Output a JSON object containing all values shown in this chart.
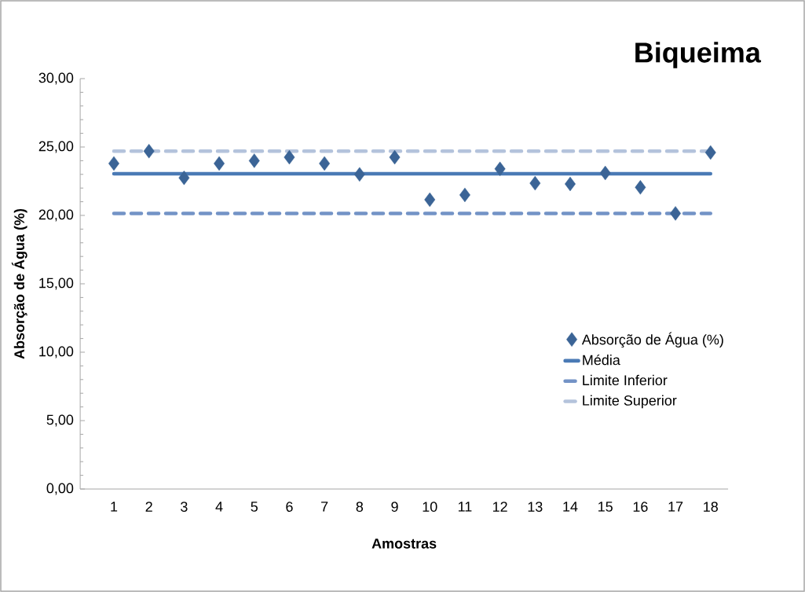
{
  "chart_data": {
    "type": "scatter",
    "title": "Biqueima",
    "xlabel": "Amostras",
    "ylabel": "Absorção de Água (%)",
    "categories": [
      "1",
      "2",
      "3",
      "4",
      "5",
      "6",
      "7",
      "8",
      "9",
      "10",
      "11",
      "12",
      "13",
      "14",
      "15",
      "16",
      "17",
      "18"
    ],
    "series": [
      {
        "name": "Absorção de Água (%)",
        "marker": "diamond",
        "color": "#3b6496",
        "values": [
          23.8,
          24.7,
          22.75,
          23.8,
          24.0,
          24.25,
          23.8,
          23.0,
          24.25,
          21.15,
          21.5,
          23.4,
          22.35,
          22.3,
          23.1,
          22.05,
          20.15,
          24.6
        ]
      },
      {
        "name": "Média",
        "type": "line",
        "line_style": "solid",
        "marker": "none",
        "color": "#4a7ab5",
        "values": [
          23.05,
          23.05,
          23.05,
          23.05,
          23.05,
          23.05,
          23.05,
          23.05,
          23.05,
          23.05,
          23.05,
          23.05,
          23.05,
          23.05,
          23.05,
          23.05,
          23.05,
          23.05
        ]
      },
      {
        "name": "Limite Inferior",
        "type": "line",
        "line_style": "dashed",
        "marker": "none",
        "color": "#7393c6",
        "values": [
          20.15,
          20.15,
          20.15,
          20.15,
          20.15,
          20.15,
          20.15,
          20.15,
          20.15,
          20.15,
          20.15,
          20.15,
          20.15,
          20.15,
          20.15,
          20.15,
          20.15,
          20.15
        ]
      },
      {
        "name": "Limite Superior",
        "type": "line",
        "line_style": "dashed",
        "marker": "none",
        "color": "#b4c3dc",
        "values": [
          24.7,
          24.7,
          24.7,
          24.7,
          24.7,
          24.7,
          24.7,
          24.7,
          24.7,
          24.7,
          24.7,
          24.7,
          24.7,
          24.7,
          24.7,
          24.7,
          24.7,
          24.7
        ]
      }
    ],
    "ylim": [
      0,
      30
    ],
    "yticks": [
      {
        "value": 0,
        "label": "0,00"
      },
      {
        "value": 5,
        "label": "5,00"
      },
      {
        "value": 10,
        "label": "10,00"
      },
      {
        "value": 15,
        "label": "15,00"
      },
      {
        "value": 20,
        "label": "20,00"
      },
      {
        "value": 25,
        "label": "25,00"
      },
      {
        "value": 30,
        "label": "30,00"
      }
    ],
    "grid": false,
    "legend": "bottom right"
  }
}
